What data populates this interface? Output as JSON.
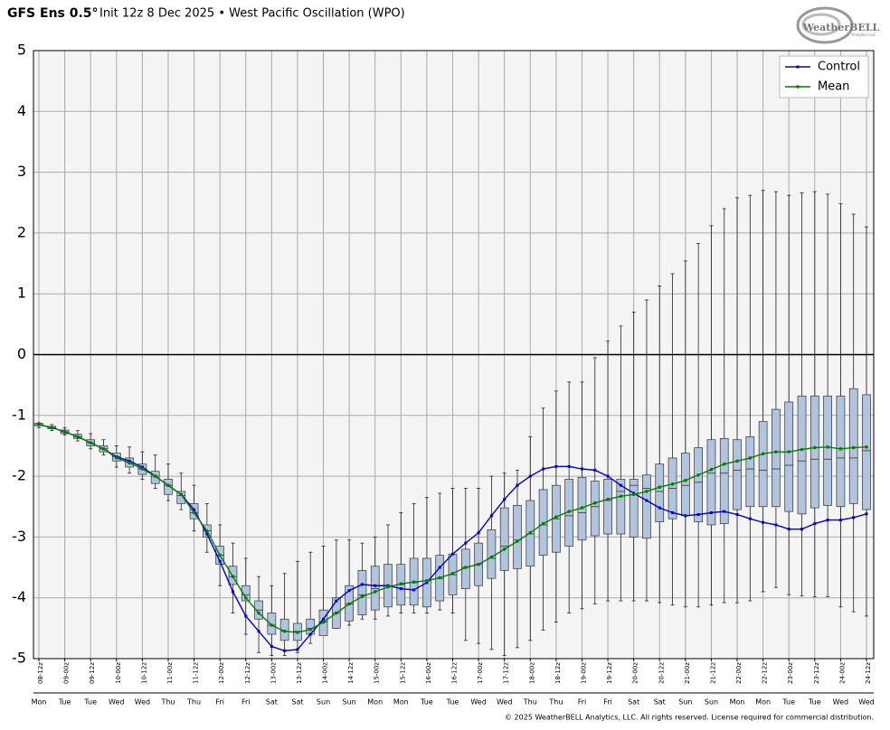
{
  "chart_data": {
    "type": "boxplot",
    "title_model": "GFS Ens 0.5°",
    "title": "Init 12z 8 Dec 2025 • West Pacific Oscillation (WPO)",
    "logo": "WeatherBELL",
    "logo_sub": "Analytics LLC",
    "footer": "© 2025 WeatherBELL Analytics, LLC. All rights reserved. License required for commercial distribution.",
    "categories": [
      "08-12z",
      null,
      "09-00z",
      null,
      "09-12z",
      null,
      "10-00z",
      null,
      "10-12z",
      null,
      "11-00z",
      null,
      "11-12z",
      null,
      "12-00z",
      null,
      "12-12z",
      null,
      "13-00z",
      null,
      "13-12z",
      null,
      "14-00z",
      null,
      "14-12z",
      null,
      "15-00z",
      null,
      "15-12z",
      null,
      "16-00z",
      null,
      "16-12z",
      null,
      "17-00z",
      null,
      "17-12z",
      null,
      "18-00z",
      null,
      "18-12z",
      null,
      "19-00z",
      null,
      "19-12z",
      null,
      "20-00z",
      null,
      "20-12z",
      null,
      "21-00z",
      null,
      "21-12z",
      null,
      "22-00z",
      null,
      "22-12z",
      null,
      "23-00z",
      null,
      "23-12z",
      null,
      "24-00z",
      null,
      "24-12z"
    ],
    "weekdays": [
      "Mon",
      null,
      "Tue",
      null,
      "Tue",
      null,
      "Wed",
      null,
      "Wed",
      null,
      "Thu",
      null,
      "Thu",
      null,
      "Fri",
      null,
      "Fri",
      null,
      "Sat",
      null,
      "Sat",
      null,
      "Sun",
      null,
      "Sun",
      null,
      "Mon",
      null,
      "Mon",
      null,
      "Tue",
      null,
      "Tue",
      null,
      "Wed",
      null,
      "Wed",
      null,
      "Thu",
      null,
      "Thu",
      null,
      "Fri",
      null,
      "Fri",
      null,
      "Sat",
      null,
      "Sat",
      null,
      "Sun",
      null,
      "Sun",
      null,
      "Mon",
      null,
      "Mon",
      null,
      "Tue",
      null,
      "Tue",
      null,
      "Wed",
      null,
      "Wed"
    ],
    "series": [
      {
        "name": "Control",
        "color": "#0000cc",
        "values": [
          -1.15,
          -1.2,
          -1.27,
          -1.35,
          -1.45,
          -1.55,
          -1.68,
          -1.75,
          -1.85,
          -2.0,
          -2.15,
          -2.3,
          -2.55,
          -2.95,
          -3.4,
          -3.9,
          -4.3,
          -4.55,
          -4.8,
          -4.87,
          -4.85,
          -4.6,
          -4.35,
          -4.05,
          -3.88,
          -3.78,
          -3.8,
          -3.8,
          -3.85,
          -3.87,
          -3.75,
          -3.5,
          -3.28,
          -3.1,
          -2.93,
          -2.65,
          -2.38,
          -2.15,
          -2.0,
          -1.88,
          -1.84,
          -1.84,
          -1.88,
          -1.9,
          -2.0,
          -2.15,
          -2.28,
          -2.4,
          -2.52,
          -2.6,
          -2.65,
          -2.63,
          -2.6,
          -2.58,
          -2.63,
          -2.7,
          -2.76,
          -2.8,
          -2.87,
          -2.87,
          -2.78,
          -2.72,
          -2.72,
          -2.68,
          -2.62
        ]
      },
      {
        "name": "Mean",
        "color": "#008000",
        "values": [
          -1.15,
          -1.2,
          -1.27,
          -1.35,
          -1.45,
          -1.55,
          -1.7,
          -1.78,
          -1.88,
          -2.0,
          -2.15,
          -2.3,
          -2.6,
          -2.9,
          -3.3,
          -3.65,
          -4.0,
          -4.25,
          -4.45,
          -4.55,
          -4.57,
          -4.52,
          -4.4,
          -4.25,
          -4.1,
          -3.98,
          -3.9,
          -3.82,
          -3.77,
          -3.74,
          -3.72,
          -3.67,
          -3.6,
          -3.5,
          -3.45,
          -3.33,
          -3.2,
          -3.07,
          -2.93,
          -2.78,
          -2.67,
          -2.58,
          -2.52,
          -2.44,
          -2.38,
          -2.33,
          -2.3,
          -2.25,
          -2.18,
          -2.13,
          -2.07,
          -1.98,
          -1.89,
          -1.8,
          -1.75,
          -1.7,
          -1.63,
          -1.6,
          -1.6,
          -1.56,
          -1.53,
          -1.52,
          -1.55,
          -1.53,
          -1.52
        ]
      }
    ],
    "boxes": {
      "color": "#b0c4de",
      "min": [
        -1.2,
        -1.25,
        -1.32,
        -1.42,
        -1.55,
        -1.65,
        -1.85,
        -1.95,
        -2.05,
        -2.2,
        -2.4,
        -2.55,
        -2.9,
        -3.25,
        -3.8,
        -4.25,
        -4.6,
        -4.9,
        -4.95,
        -4.95,
        -4.9,
        -4.75,
        -4.6,
        -4.5,
        -4.45,
        -4.35,
        -4.35,
        -4.3,
        -4.25,
        -4.25,
        -4.25,
        -4.2,
        -4.25,
        -4.7,
        -4.75,
        -4.85,
        -4.95,
        -4.82,
        -4.7,
        -4.53,
        -4.4,
        -4.25,
        -4.18,
        -4.1,
        -4.05,
        -4.05,
        -4.05,
        -4.05,
        -4.08,
        -4.12,
        -4.15,
        -4.15,
        -4.12,
        -4.08,
        -4.08,
        -4.05,
        -3.9,
        -3.83,
        -3.95,
        -3.97,
        -3.98,
        -3.98,
        -4.15,
        -4.23,
        -4.3
      ],
      "q1": [
        -1.17,
        -1.22,
        -1.3,
        -1.38,
        -1.5,
        -1.6,
        -1.75,
        -1.85,
        -1.97,
        -2.12,
        -2.3,
        -2.45,
        -2.7,
        -3.0,
        -3.45,
        -3.78,
        -4.05,
        -4.35,
        -4.6,
        -4.7,
        -4.7,
        -4.6,
        -4.62,
        -4.5,
        -4.38,
        -4.28,
        -4.2,
        -4.15,
        -4.12,
        -4.12,
        -4.15,
        -4.05,
        -3.95,
        -3.85,
        -3.8,
        -3.68,
        -3.55,
        -3.52,
        -3.48,
        -3.3,
        -3.25,
        -3.15,
        -3.05,
        -2.98,
        -2.95,
        -2.95,
        -3.0,
        -3.02,
        -2.75,
        -2.7,
        -2.65,
        -2.75,
        -2.8,
        -2.78,
        -2.55,
        -2.5,
        -2.5,
        -2.5,
        -2.58,
        -2.62,
        -2.52,
        -2.48,
        -2.5,
        -2.45,
        -2.55
      ],
      "median": [
        -1.15,
        -1.2,
        -1.27,
        -1.35,
        -1.45,
        -1.55,
        -1.68,
        -1.77,
        -1.88,
        -2.0,
        -2.15,
        -2.32,
        -2.6,
        -2.9,
        -3.3,
        -3.65,
        -3.95,
        -4.2,
        -4.45,
        -4.55,
        -4.55,
        -4.5,
        -4.4,
        -4.25,
        -4.1,
        -3.95,
        -3.85,
        -3.8,
        -3.78,
        -3.75,
        -3.72,
        -3.68,
        -3.62,
        -3.5,
        -3.45,
        -3.35,
        -3.15,
        -3.05,
        -2.95,
        -2.8,
        -2.7,
        -2.65,
        -2.6,
        -2.5,
        -2.4,
        -2.25,
        -2.15,
        -2.2,
        -2.25,
        -2.2,
        -2.15,
        -2.1,
        -1.95,
        -1.95,
        -1.9,
        -1.88,
        -1.9,
        -1.88,
        -1.82,
        -1.75,
        -1.72,
        -1.72,
        -1.7,
        -1.7,
        -1.58
      ],
      "q3": [
        -1.13,
        -1.18,
        -1.24,
        -1.31,
        -1.4,
        -1.5,
        -1.62,
        -1.7,
        -1.8,
        -1.92,
        -2.05,
        -2.25,
        -2.45,
        -2.8,
        -3.15,
        -3.48,
        -3.8,
        -4.05,
        -4.25,
        -4.35,
        -4.42,
        -4.35,
        -4.2,
        -4.0,
        -3.8,
        -3.55,
        -3.48,
        -3.45,
        -3.45,
        -3.35,
        -3.35,
        -3.3,
        -3.28,
        -3.2,
        -3.1,
        -2.88,
        -2.52,
        -2.48,
        -2.4,
        -2.22,
        -2.15,
        -2.05,
        -2.02,
        -2.08,
        -2.05,
        -2.05,
        -2.05,
        -1.98,
        -1.8,
        -1.7,
        -1.62,
        -1.53,
        -1.4,
        -1.38,
        -1.4,
        -1.35,
        -1.1,
        -0.9,
        -0.78,
        -0.68,
        -0.68,
        -0.68,
        -0.68,
        -0.56,
        -0.66
      ],
      "max": [
        -1.12,
        -1.15,
        -1.2,
        -1.25,
        -1.3,
        -1.4,
        -1.5,
        -1.52,
        -1.6,
        -1.65,
        -1.8,
        -1.95,
        -2.15,
        -2.45,
        -2.8,
        -3.1,
        -3.35,
        -3.65,
        -3.8,
        -3.6,
        -3.4,
        -3.25,
        -3.15,
        -3.05,
        -3.05,
        -3.1,
        -3.0,
        -2.8,
        -2.6,
        -2.45,
        -2.35,
        -2.28,
        -2.2,
        -2.2,
        -2.2,
        -2.0,
        -1.95,
        -1.9,
        -1.35,
        -0.88,
        -0.6,
        -0.45,
        -0.45,
        -0.05,
        0.22,
        0.47,
        0.7,
        0.9,
        1.13,
        1.33,
        1.54,
        1.83,
        2.12,
        2.4,
        2.58,
        2.62,
        2.7,
        2.68,
        2.62,
        2.66,
        2.68,
        2.64,
        2.48,
        2.31,
        2.1
      ]
    },
    "ylim": [
      -5,
      5
    ],
    "yticks": [
      -5,
      -4,
      -3,
      -2,
      -1,
      0,
      1,
      2,
      3,
      4,
      5
    ],
    "grid": true,
    "legend": "upper right"
  }
}
